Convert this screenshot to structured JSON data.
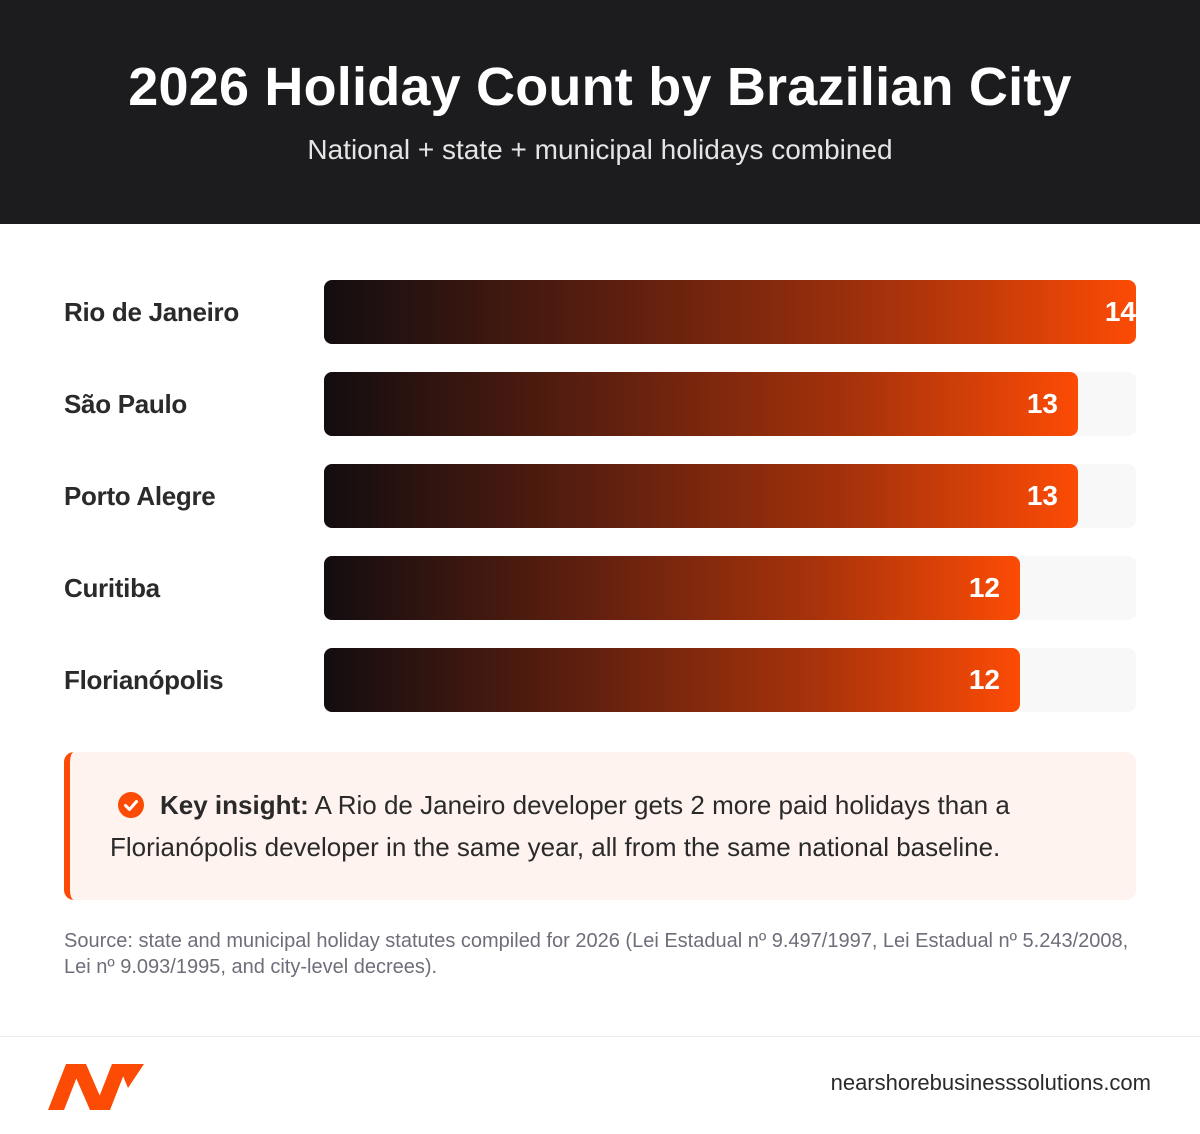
{
  "header": {
    "title": "2026 Holiday Count by Brazilian City",
    "subtitle": "National + state + municipal holidays combined"
  },
  "chart_data": {
    "type": "bar",
    "orientation": "horizontal",
    "title": "2026 Holiday Count by Brazilian City",
    "subtitle": "National + state + municipal holidays combined",
    "categories": [
      "Rio de Janeiro",
      "São Paulo",
      "Porto Alegre",
      "Curitiba",
      "Florianópolis"
    ],
    "values": [
      14,
      13,
      13,
      12,
      12
    ],
    "xlim": [
      0,
      14
    ],
    "xlabel": "",
    "ylabel": "",
    "grid": false,
    "legend": "none",
    "colors": {
      "bar_start": "#120d10",
      "bar_end": "#fc4b05",
      "track": "#f8f8f8"
    }
  },
  "insight": {
    "lead": "Key insight:",
    "text": "A Rio de Janeiro developer gets 2 more paid holidays than a Florianópolis developer in the same year, all from the same national baseline."
  },
  "source": "Source: state and municipal holiday statutes compiled for 2026 (Lei Estadual nº 9.497/1997, Lei Estadual nº 5.243/2008, Lei nº 9.093/1995, and city-level decrees).",
  "footer": {
    "website": "nearshorebusinesssolutions.com",
    "logo_icon": "nbs-logo-icon"
  },
  "colors": {
    "accent": "#fc4b05",
    "header_bg": "#1c1b1e"
  }
}
